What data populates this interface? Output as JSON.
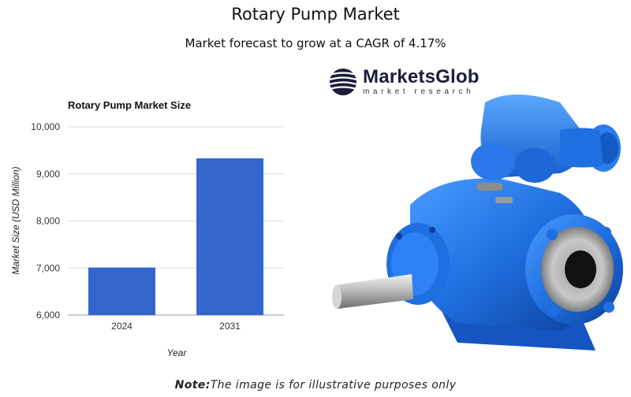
{
  "header": {
    "title": "Rotary Pump Market",
    "subtitle": "Market forecast to grow at a CAGR of 4.17%"
  },
  "brand": {
    "name": "MarketsGlob",
    "tagline": "market research",
    "logo_icon": "globe-icon"
  },
  "footnote": {
    "prefix": "Note:",
    "text": "The image is for illustrative purposes only"
  },
  "colors": {
    "bar": "#3366cc",
    "grid": "#d8d8d8",
    "pump_blue": "#1f6fe0"
  },
  "chart_data": {
    "type": "bar",
    "title": "Rotary Pump Market Size",
    "xlabel": "Year",
    "ylabel": "Market Size (USD Million)",
    "categories": [
      "2024",
      "2031"
    ],
    "values": [
      7010,
      9330
    ],
    "ylim": [
      6000,
      10000
    ],
    "yticks": [
      6000,
      7000,
      8000,
      9000,
      10000
    ],
    "ytick_labels": [
      "6,000",
      "7,000",
      "8,000",
      "9,000",
      "10,000"
    ],
    "grid": true,
    "legend": "none"
  }
}
